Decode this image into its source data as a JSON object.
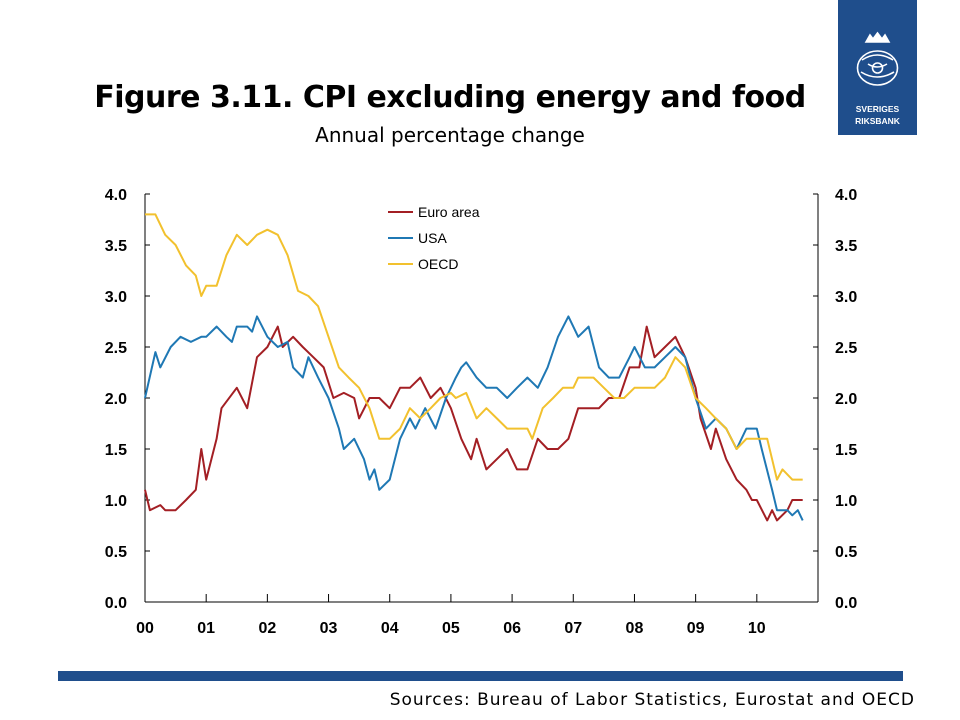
{
  "header": {
    "title": "Figure 3.11. CPI excluding energy and food",
    "subtitle": "Annual percentage change"
  },
  "logo": {
    "line1": "SVERIGES",
    "line2": "RIKSBANK",
    "icon": "riksbank-crest-icon",
    "color": "#1f4e8c"
  },
  "footer": {
    "sources": "Sources: Bureau of Labor Statistics, Eurostat and OECD",
    "bar_color": "#1f4e8c"
  },
  "chart_data": {
    "type": "line",
    "title": "Figure 3.11. CPI excluding energy and food",
    "subtitle": "Annual percentage change",
    "xlabel": "",
    "ylabel": "",
    "ylim": [
      0,
      4
    ],
    "yticks": [
      "0.0",
      "0.5",
      "1.0",
      "1.5",
      "2.0",
      "2.5",
      "3.0",
      "3.5",
      "4.0"
    ],
    "right_yticks": [
      "0.0",
      "0.5",
      "1.0",
      "1.5",
      "2.0",
      "2.5",
      "3.0",
      "3.5",
      "4.0"
    ],
    "xlim": [
      2000,
      2011
    ],
    "xticks": [
      {
        "label": "00",
        "value": 2000
      },
      {
        "label": "01",
        "value": 2001
      },
      {
        "label": "02",
        "value": 2002
      },
      {
        "label": "03",
        "value": 2003
      },
      {
        "label": "04",
        "value": 2004
      },
      {
        "label": "05",
        "value": 2005
      },
      {
        "label": "06",
        "value": 2006
      },
      {
        "label": "07",
        "value": 2007
      },
      {
        "label": "08",
        "value": 2008
      },
      {
        "label": "09",
        "value": 2009
      },
      {
        "label": "10",
        "value": 2010
      }
    ],
    "grid": false,
    "legend_position": "top-center",
    "series": [
      {
        "name": "Euro area",
        "color": "#a31f24",
        "points": [
          [
            2000.0,
            1.1
          ],
          [
            2000.08,
            0.9
          ],
          [
            2000.25,
            0.95
          ],
          [
            2000.33,
            0.9
          ],
          [
            2000.5,
            0.9
          ],
          [
            2000.67,
            1.0
          ],
          [
            2000.83,
            1.1
          ],
          [
            2000.92,
            1.5
          ],
          [
            2001.0,
            1.2
          ],
          [
            2001.17,
            1.6
          ],
          [
            2001.25,
            1.9
          ],
          [
            2001.5,
            2.1
          ],
          [
            2001.67,
            1.9
          ],
          [
            2001.83,
            2.4
          ],
          [
            2002.0,
            2.5
          ],
          [
            2002.17,
            2.7
          ],
          [
            2002.25,
            2.5
          ],
          [
            2002.42,
            2.6
          ],
          [
            2002.58,
            2.5
          ],
          [
            2002.75,
            2.4
          ],
          [
            2002.92,
            2.3
          ],
          [
            2003.08,
            2.0
          ],
          [
            2003.25,
            2.05
          ],
          [
            2003.42,
            2.0
          ],
          [
            2003.5,
            1.8
          ],
          [
            2003.67,
            2.0
          ],
          [
            2003.83,
            2.0
          ],
          [
            2004.0,
            1.9
          ],
          [
            2004.17,
            2.1
          ],
          [
            2004.33,
            2.1
          ],
          [
            2004.5,
            2.2
          ],
          [
            2004.67,
            2.0
          ],
          [
            2004.83,
            2.1
          ],
          [
            2005.0,
            1.9
          ],
          [
            2005.17,
            1.6
          ],
          [
            2005.33,
            1.4
          ],
          [
            2005.42,
            1.6
          ],
          [
            2005.58,
            1.3
          ],
          [
            2005.75,
            1.4
          ],
          [
            2005.92,
            1.5
          ],
          [
            2006.08,
            1.3
          ],
          [
            2006.25,
            1.3
          ],
          [
            2006.42,
            1.6
          ],
          [
            2006.58,
            1.5
          ],
          [
            2006.75,
            1.5
          ],
          [
            2006.92,
            1.6
          ],
          [
            2007.08,
            1.9
          ],
          [
            2007.25,
            1.9
          ],
          [
            2007.42,
            1.9
          ],
          [
            2007.58,
            2.0
          ],
          [
            2007.75,
            2.0
          ],
          [
            2007.92,
            2.3
          ],
          [
            2008.08,
            2.3
          ],
          [
            2008.2,
            2.7
          ],
          [
            2008.33,
            2.4
          ],
          [
            2008.5,
            2.5
          ],
          [
            2008.67,
            2.6
          ],
          [
            2008.83,
            2.4
          ],
          [
            2009.0,
            2.1
          ],
          [
            2009.08,
            1.8
          ],
          [
            2009.25,
            1.5
          ],
          [
            2009.33,
            1.7
          ],
          [
            2009.5,
            1.4
          ],
          [
            2009.67,
            1.2
          ],
          [
            2009.83,
            1.1
          ],
          [
            2009.92,
            1.0
          ],
          [
            2010.0,
            1.0
          ],
          [
            2010.17,
            0.8
          ],
          [
            2010.25,
            0.9
          ],
          [
            2010.33,
            0.8
          ],
          [
            2010.5,
            0.9
          ],
          [
            2010.58,
            1.0
          ],
          [
            2010.67,
            1.0
          ],
          [
            2010.75,
            1.0
          ]
        ]
      },
      {
        "name": "USA",
        "color": "#1f78b4",
        "points": [
          [
            2000.0,
            2.0
          ],
          [
            2000.17,
            2.45
          ],
          [
            2000.25,
            2.3
          ],
          [
            2000.42,
            2.5
          ],
          [
            2000.58,
            2.6
          ],
          [
            2000.75,
            2.55
          ],
          [
            2000.92,
            2.6
          ],
          [
            2001.0,
            2.6
          ],
          [
            2001.17,
            2.7
          ],
          [
            2001.33,
            2.6
          ],
          [
            2001.42,
            2.55
          ],
          [
            2001.5,
            2.7
          ],
          [
            2001.67,
            2.7
          ],
          [
            2001.75,
            2.65
          ],
          [
            2001.83,
            2.8
          ],
          [
            2002.0,
            2.6
          ],
          [
            2002.17,
            2.5
          ],
          [
            2002.33,
            2.55
          ],
          [
            2002.42,
            2.3
          ],
          [
            2002.58,
            2.2
          ],
          [
            2002.67,
            2.4
          ],
          [
            2002.83,
            2.2
          ],
          [
            2003.0,
            2.0
          ],
          [
            2003.17,
            1.7
          ],
          [
            2003.25,
            1.5
          ],
          [
            2003.42,
            1.6
          ],
          [
            2003.58,
            1.4
          ],
          [
            2003.67,
            1.2
          ],
          [
            2003.75,
            1.3
          ],
          [
            2003.83,
            1.1
          ],
          [
            2004.0,
            1.2
          ],
          [
            2004.17,
            1.6
          ],
          [
            2004.33,
            1.8
          ],
          [
            2004.42,
            1.7
          ],
          [
            2004.58,
            1.9
          ],
          [
            2004.75,
            1.7
          ],
          [
            2004.92,
            2.0
          ],
          [
            2005.08,
            2.2
          ],
          [
            2005.17,
            2.3
          ],
          [
            2005.25,
            2.35
          ],
          [
            2005.42,
            2.2
          ],
          [
            2005.58,
            2.1
          ],
          [
            2005.75,
            2.1
          ],
          [
            2005.92,
            2.0
          ],
          [
            2006.08,
            2.1
          ],
          [
            2006.25,
            2.2
          ],
          [
            2006.42,
            2.1
          ],
          [
            2006.58,
            2.3
          ],
          [
            2006.75,
            2.6
          ],
          [
            2006.92,
            2.8
          ],
          [
            2007.08,
            2.6
          ],
          [
            2007.25,
            2.7
          ],
          [
            2007.42,
            2.3
          ],
          [
            2007.58,
            2.2
          ],
          [
            2007.75,
            2.2
          ],
          [
            2007.92,
            2.4
          ],
          [
            2008.0,
            2.5
          ],
          [
            2008.17,
            2.3
          ],
          [
            2008.33,
            2.3
          ],
          [
            2008.5,
            2.4
          ],
          [
            2008.67,
            2.5
          ],
          [
            2008.83,
            2.4
          ],
          [
            2009.0,
            2.0
          ],
          [
            2009.17,
            1.7
          ],
          [
            2009.33,
            1.8
          ],
          [
            2009.5,
            1.7
          ],
          [
            2009.67,
            1.5
          ],
          [
            2009.83,
            1.7
          ],
          [
            2010.0,
            1.7
          ],
          [
            2010.08,
            1.5
          ],
          [
            2010.25,
            1.1
          ],
          [
            2010.33,
            0.9
          ],
          [
            2010.5,
            0.9
          ],
          [
            2010.58,
            0.85
          ],
          [
            2010.67,
            0.9
          ],
          [
            2010.75,
            0.8
          ]
        ]
      },
      {
        "name": "OECD",
        "color": "#f2c12e",
        "points": [
          [
            2000.0,
            3.8
          ],
          [
            2000.17,
            3.8
          ],
          [
            2000.33,
            3.6
          ],
          [
            2000.5,
            3.5
          ],
          [
            2000.67,
            3.3
          ],
          [
            2000.83,
            3.2
          ],
          [
            2000.92,
            3.0
          ],
          [
            2001.0,
            3.1
          ],
          [
            2001.17,
            3.1
          ],
          [
            2001.33,
            3.4
          ],
          [
            2001.5,
            3.6
          ],
          [
            2001.67,
            3.5
          ],
          [
            2001.83,
            3.6
          ],
          [
            2002.0,
            3.65
          ],
          [
            2002.17,
            3.6
          ],
          [
            2002.33,
            3.4
          ],
          [
            2002.5,
            3.05
          ],
          [
            2002.67,
            3.0
          ],
          [
            2002.83,
            2.9
          ],
          [
            2003.0,
            2.6
          ],
          [
            2003.17,
            2.3
          ],
          [
            2003.33,
            2.2
          ],
          [
            2003.5,
            2.1
          ],
          [
            2003.67,
            1.9
          ],
          [
            2003.83,
            1.6
          ],
          [
            2004.0,
            1.6
          ],
          [
            2004.17,
            1.7
          ],
          [
            2004.33,
            1.9
          ],
          [
            2004.5,
            1.8
          ],
          [
            2004.67,
            1.9
          ],
          [
            2004.83,
            2.0
          ],
          [
            2005.0,
            2.05
          ],
          [
            2005.08,
            2.0
          ],
          [
            2005.25,
            2.05
          ],
          [
            2005.42,
            1.8
          ],
          [
            2005.58,
            1.9
          ],
          [
            2005.75,
            1.8
          ],
          [
            2005.92,
            1.7
          ],
          [
            2006.08,
            1.7
          ],
          [
            2006.25,
            1.7
          ],
          [
            2006.33,
            1.6
          ],
          [
            2006.5,
            1.9
          ],
          [
            2006.67,
            2.0
          ],
          [
            2006.83,
            2.1
          ],
          [
            2007.0,
            2.1
          ],
          [
            2007.08,
            2.2
          ],
          [
            2007.33,
            2.2
          ],
          [
            2007.5,
            2.1
          ],
          [
            2007.67,
            2.0
          ],
          [
            2007.83,
            2.0
          ],
          [
            2008.0,
            2.1
          ],
          [
            2008.17,
            2.1
          ],
          [
            2008.33,
            2.1
          ],
          [
            2008.5,
            2.2
          ],
          [
            2008.67,
            2.4
          ],
          [
            2008.83,
            2.3
          ],
          [
            2009.0,
            2.0
          ],
          [
            2009.17,
            1.9
          ],
          [
            2009.33,
            1.8
          ],
          [
            2009.5,
            1.7
          ],
          [
            2009.67,
            1.5
          ],
          [
            2009.83,
            1.6
          ],
          [
            2010.0,
            1.6
          ],
          [
            2010.17,
            1.6
          ],
          [
            2010.25,
            1.4
          ],
          [
            2010.33,
            1.2
          ],
          [
            2010.42,
            1.3
          ],
          [
            2010.58,
            1.2
          ],
          [
            2010.75,
            1.2
          ]
        ]
      }
    ]
  }
}
